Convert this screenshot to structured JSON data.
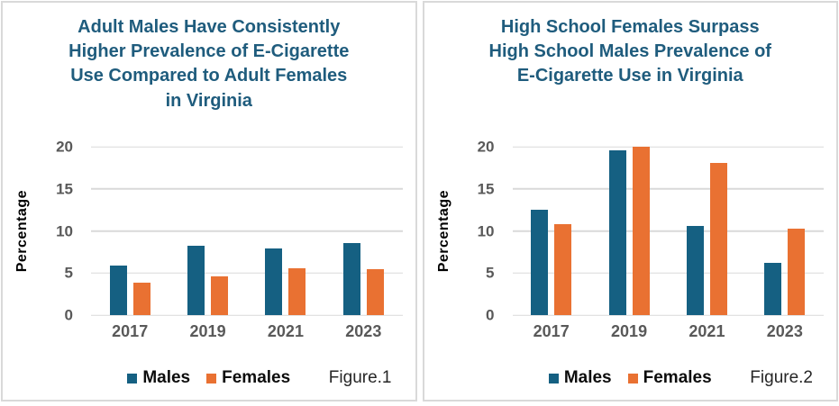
{
  "colors": {
    "males": "#156082",
    "females": "#E97132",
    "title": "#1F5C7D",
    "gridline": "#D9D9D9",
    "axis_tick": "#595959",
    "card_border": "#D9D9D9"
  },
  "chart_data": [
    {
      "type": "bar",
      "title": "Adult Males Have Consistently\nHigher Prevalence of E-Cigarette\nUse Compared to Adult Females\nin Virginia",
      "categories": [
        "2017",
        "2019",
        "2021",
        "2023"
      ],
      "series": [
        {
          "name": "Males",
          "color": "#156082",
          "values": [
            5.9,
            8.2,
            7.9,
            8.6
          ]
        },
        {
          "name": "Females",
          "color": "#E97132",
          "values": [
            3.9,
            4.6,
            5.6,
            5.5
          ]
        }
      ],
      "xlabel": "",
      "ylabel": "Percentage",
      "yticks": [
        0,
        5,
        10,
        15,
        20
      ],
      "ylim": [
        0,
        20
      ],
      "grid": true,
      "legend_position": "bottom",
      "figure_label": "Figure.1"
    },
    {
      "type": "bar",
      "title": "High School Females Surpass\nHigh School Males Prevalence of\nE-Cigarette Use in Virginia",
      "categories": [
        "2017",
        "2019",
        "2021",
        "2023"
      ],
      "series": [
        {
          "name": "Males",
          "color": "#156082",
          "values": [
            12.5,
            19.6,
            10.6,
            6.2
          ]
        },
        {
          "name": "Females",
          "color": "#E97132",
          "values": [
            10.8,
            20.0,
            18.1,
            10.3
          ]
        }
      ],
      "xlabel": "",
      "ylabel": "Percentage",
      "yticks": [
        0,
        5,
        10,
        15,
        20
      ],
      "ylim": [
        0,
        20
      ],
      "grid": true,
      "legend_position": "bottom",
      "figure_label": "Figure.2"
    }
  ]
}
